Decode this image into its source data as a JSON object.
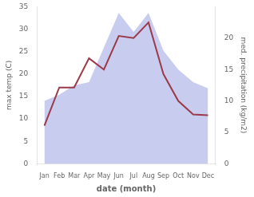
{
  "chart_data": {
    "type": "line",
    "categories": [
      "Jan",
      "Feb",
      "Mar",
      "Apr",
      "May",
      "Jun",
      "Jul",
      "Aug",
      "Sep",
      "Oct",
      "Nov",
      "Dec"
    ],
    "xlabel": "date (month)",
    "ylabel": "max temp (C)",
    "y2label": "med. precipitation (kg/m2)",
    "series": [
      {
        "type": "area",
        "color": "#b0b8e8",
        "axis": "y2",
        "values": [
          10.0,
          11.0,
          12.5,
          13.0,
          18.5,
          24.0,
          21.0,
          24.0,
          18.0,
          15.0,
          13.0,
          12.0
        ]
      },
      {
        "type": "line",
        "color": "#9b3a4a",
        "values": [
          8.5,
          17.0,
          17.0,
          23.5,
          21.0,
          28.5,
          28.0,
          31.5,
          20.0,
          14.0,
          11.0,
          10.8
        ]
      }
    ],
    "ylim": [
      0,
      35
    ],
    "yticks": [
      0,
      5,
      10,
      15,
      20,
      25,
      30,
      35
    ],
    "y2lim": [
      0,
      25
    ],
    "y2ticks": [
      0,
      5,
      10,
      15,
      20
    ],
    "grid": false
  }
}
